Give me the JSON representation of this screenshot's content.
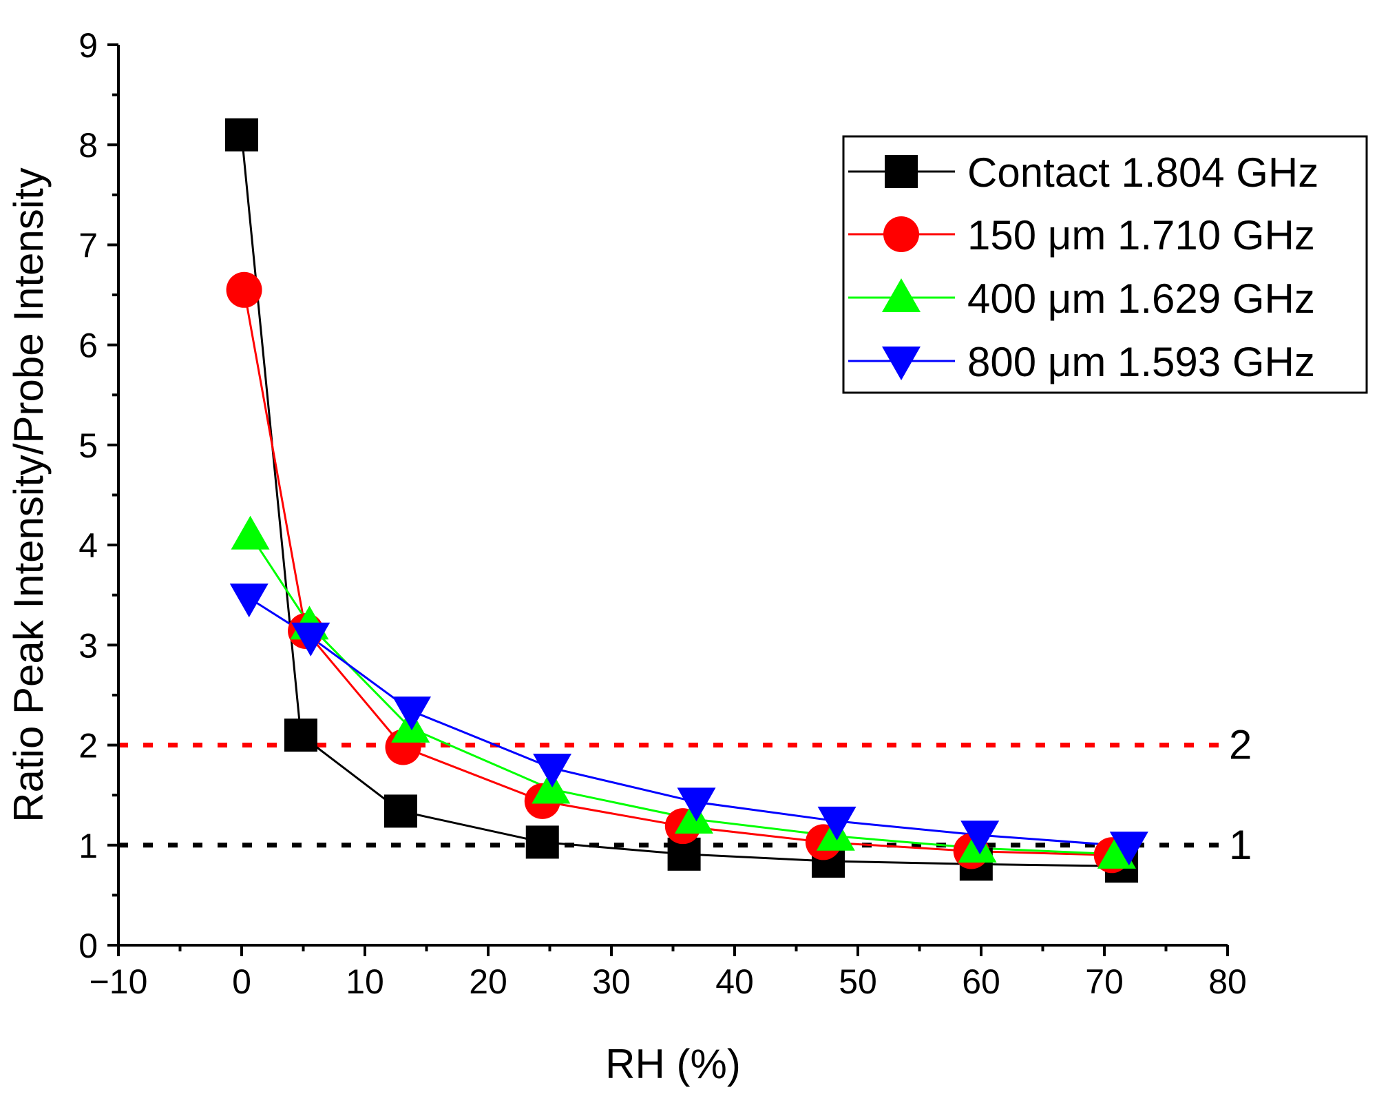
{
  "chart_data": {
    "type": "line",
    "title": "",
    "xlabel": "RH (%)",
    "ylabel": "Ratio Peak Intensity/Probe Intensity",
    "xlim": [
      -10,
      80
    ],
    "ylim": [
      0,
      9
    ],
    "xticks": [
      -10,
      0,
      10,
      20,
      30,
      40,
      50,
      60,
      70,
      80
    ],
    "xtick_labels": [
      "−10",
      "0",
      "10",
      "20",
      "30",
      "40",
      "50",
      "60",
      "70",
      "80"
    ],
    "yticks": [
      0,
      1,
      2,
      3,
      4,
      5,
      6,
      7,
      8,
      9
    ],
    "ytick_labels": [
      "0",
      "1",
      "2",
      "3",
      "4",
      "5",
      "6",
      "7",
      "8",
      "9"
    ],
    "grid": false,
    "legend_position": "top-right",
    "series": [
      {
        "name": "Contact 1.804 GHz",
        "color": "#000000",
        "marker": "square",
        "x": [
          0,
          4.8,
          12.9,
          24.4,
          35.9,
          47.6,
          59.6,
          71.4
        ],
        "y": [
          8.1,
          2.1,
          1.34,
          1.03,
          0.91,
          0.84,
          0.81,
          0.79
        ]
      },
      {
        "name": "150 μm 1.710 GHz",
        "color": "#ff0000",
        "marker": "circle",
        "x": [
          0.2,
          5.2,
          13.1,
          24.4,
          35.8,
          47.2,
          59.2,
          70.6
        ],
        "y": [
          6.55,
          3.14,
          1.98,
          1.44,
          1.19,
          1.03,
          0.94,
          0.9
        ]
      },
      {
        "name": "400 μm 1.629 GHz",
        "color": "#00ff00",
        "marker": "triangle-up",
        "x": [
          0.7,
          5.5,
          13.7,
          25.1,
          36.7,
          48.2,
          59.7,
          71.0
        ],
        "y": [
          4.1,
          3.2,
          2.17,
          1.56,
          1.26,
          1.09,
          0.97,
          0.91
        ]
      },
      {
        "name": "800 μm 1.593 GHz",
        "color": "#0000ff",
        "marker": "triangle-down",
        "x": [
          0.6,
          5.6,
          13.8,
          25.2,
          36.9,
          48.3,
          59.9,
          72.0
        ],
        "y": [
          3.47,
          3.08,
          2.34,
          1.77,
          1.43,
          1.24,
          1.1,
          0.99
        ]
      }
    ],
    "reference_lines": [
      {
        "y": 2,
        "label": "2",
        "color": "#ff0000",
        "style": "dotted"
      },
      {
        "y": 1,
        "label": "1",
        "color": "#000000",
        "style": "dotted"
      }
    ]
  }
}
